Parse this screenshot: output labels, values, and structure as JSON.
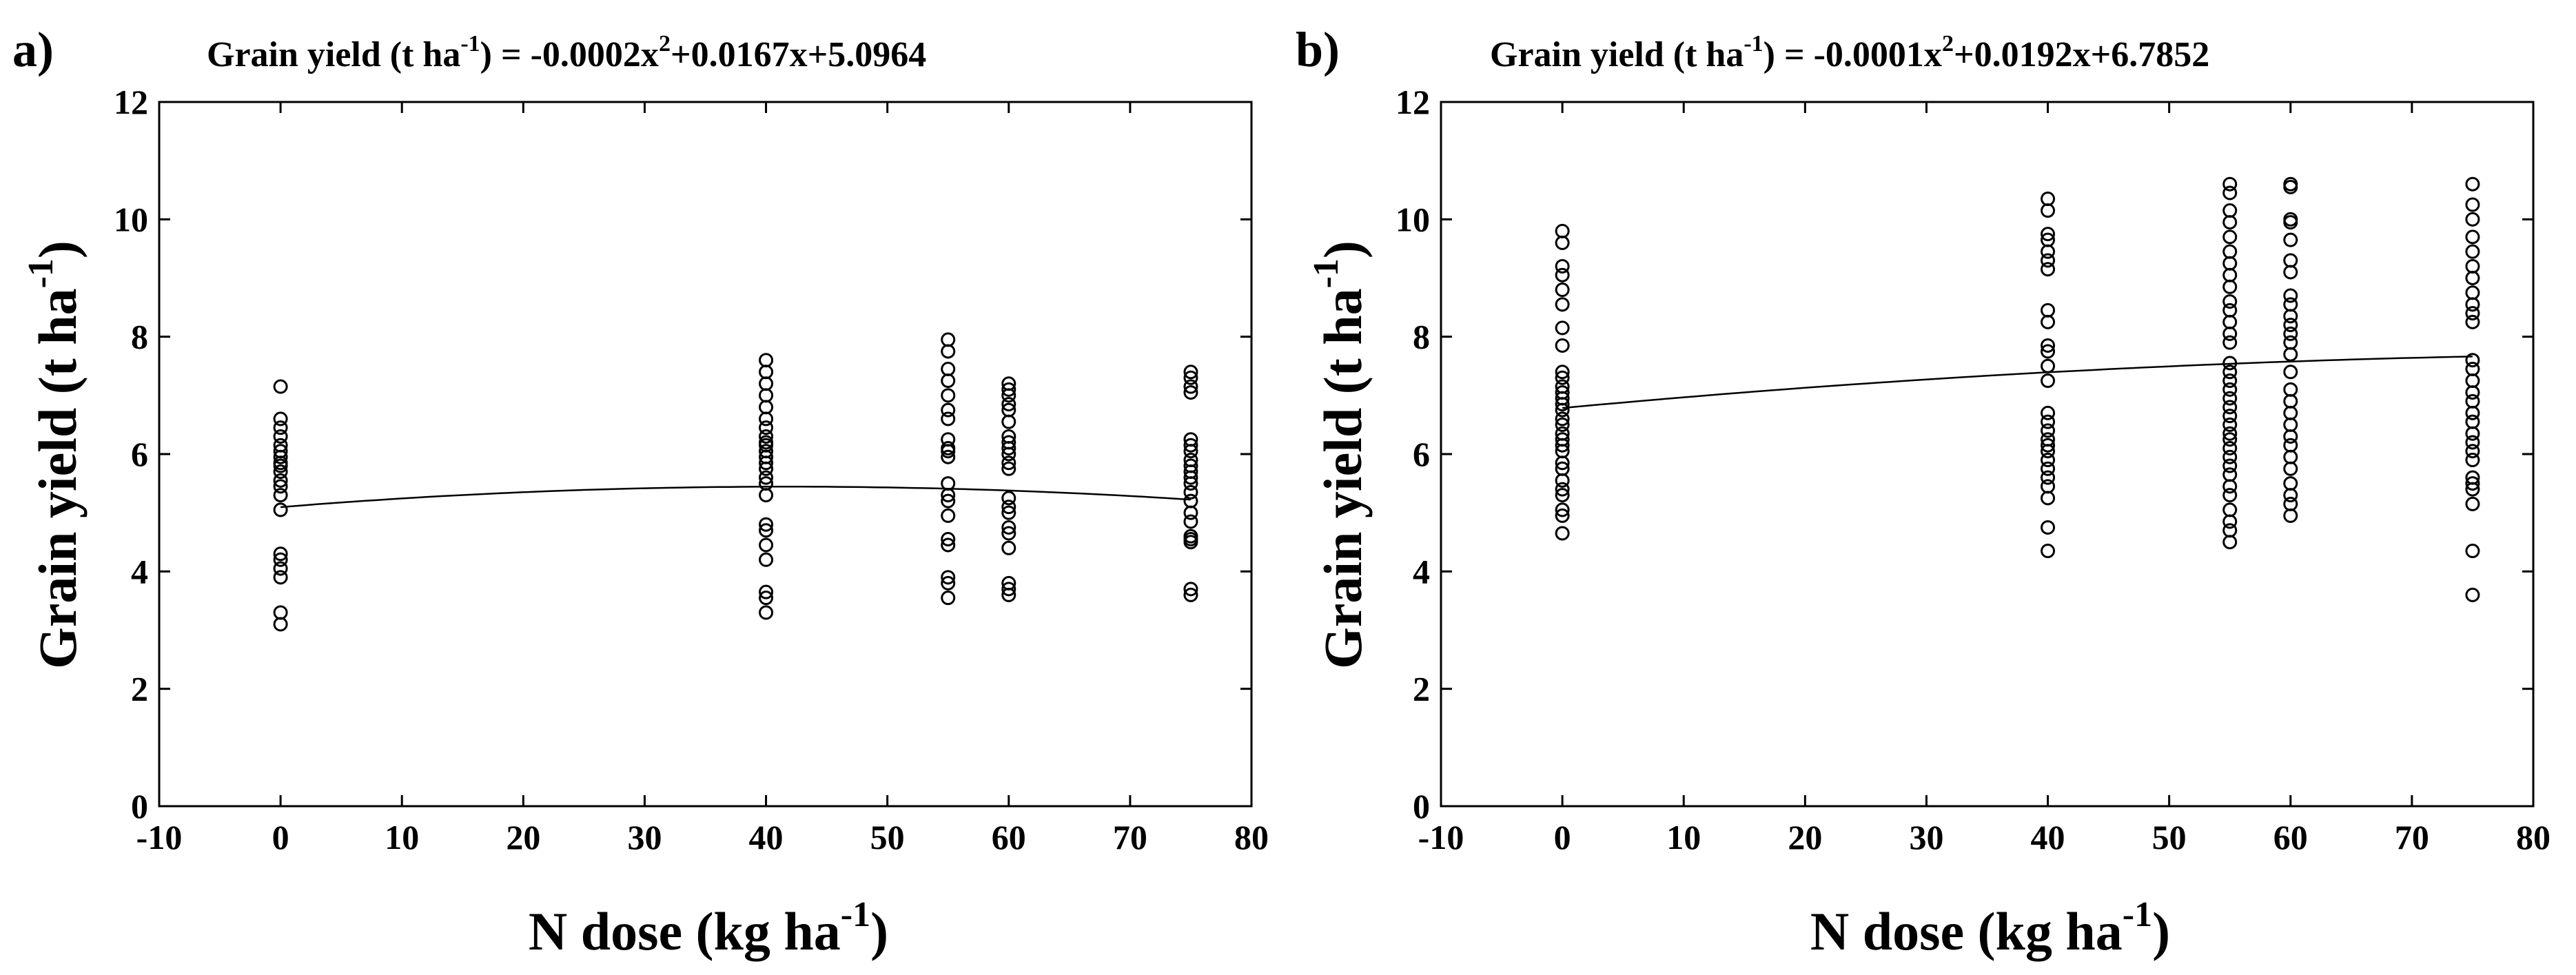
{
  "chart_data": [
    {
      "type": "scatter",
      "panel_label": "a)",
      "title": {
        "prefix": "Grain yield (t ha",
        "prefix_sup": "-1",
        "middle": ") = -0.0002x",
        "middle_sup": "2",
        "suffix": "+0.0167x+5.0964"
      },
      "fit": {
        "a": -0.0002,
        "b": 0.0167,
        "c": 5.0964
      },
      "xlabel": {
        "main": "N dose (kg ha",
        "sup": "-1",
        "close": ")"
      },
      "ylabel": {
        "main": "Grain yield (t ha",
        "sup": "-1",
        "close": ")"
      },
      "xlim": [
        -10,
        80
      ],
      "ylim": [
        0,
        12
      ],
      "xticks": [
        -10,
        0,
        10,
        20,
        30,
        40,
        50,
        60,
        70,
        80
      ],
      "yticks": [
        0,
        2,
        4,
        6,
        8,
        10,
        12
      ],
      "groups": [
        {
          "x": 0,
          "y": [
            3.1,
            3.3,
            3.9,
            4.05,
            4.2,
            4.3,
            5.05,
            5.3,
            5.45,
            5.55,
            5.7,
            5.8,
            5.85,
            5.95,
            6.05,
            6.15,
            6.3,
            6.45,
            6.6,
            7.15
          ]
        },
        {
          "x": 40,
          "y": [
            3.3,
            3.55,
            3.65,
            4.2,
            4.45,
            4.7,
            4.8,
            5.3,
            5.5,
            5.6,
            5.75,
            5.85,
            5.95,
            6.05,
            6.15,
            6.2,
            6.3,
            6.45,
            6.6,
            6.8,
            7.0,
            7.2,
            7.4,
            7.6
          ]
        },
        {
          "x": 55,
          "y": [
            3.55,
            3.8,
            3.9,
            4.45,
            4.55,
            4.95,
            5.2,
            5.3,
            5.5,
            5.95,
            6.05,
            6.1,
            6.25,
            6.6,
            6.75,
            7.0,
            7.25,
            7.45,
            7.75,
            7.95
          ]
        },
        {
          "x": 60,
          "y": [
            3.6,
            3.7,
            3.8,
            4.4,
            4.65,
            4.75,
            5.0,
            5.1,
            5.25,
            5.75,
            5.85,
            6.0,
            6.1,
            6.2,
            6.3,
            6.55,
            6.75,
            6.85,
            7.0,
            7.1,
            7.2
          ]
        },
        {
          "x": 75,
          "y": [
            3.6,
            3.7,
            4.5,
            4.55,
            4.6,
            4.85,
            5.0,
            5.2,
            5.35,
            5.5,
            5.6,
            5.7,
            5.8,
            5.9,
            6.05,
            6.15,
            6.25,
            7.05,
            7.15,
            7.3,
            7.4
          ]
        }
      ]
    },
    {
      "type": "scatter",
      "panel_label": "b)",
      "title": {
        "prefix": "Grain yield (t ha",
        "prefix_sup": "-1",
        "middle": ") = -0.0001x",
        "middle_sup": "2",
        "suffix": "+0.0192x+6.7852"
      },
      "fit": {
        "a": -0.0001,
        "b": 0.0192,
        "c": 6.7852
      },
      "xlabel": {
        "main": "N dose (kg ha",
        "sup": "-1",
        "close": ")"
      },
      "ylabel": {
        "main": "Grain yield (t ha",
        "sup": "-1",
        "close": ")"
      },
      "xlim": [
        -10,
        80
      ],
      "ylim": [
        0,
        12
      ],
      "xticks": [
        -10,
        0,
        10,
        20,
        30,
        40,
        50,
        60,
        70,
        80
      ],
      "yticks": [
        0,
        2,
        4,
        6,
        8,
        10,
        12
      ],
      "groups": [
        {
          "x": 0,
          "y": [
            4.65,
            4.95,
            5.05,
            5.3,
            5.4,
            5.55,
            5.75,
            5.85,
            6.05,
            6.15,
            6.25,
            6.35,
            6.5,
            6.6,
            6.75,
            6.85,
            6.95,
            7.05,
            7.15,
            7.3,
            7.4,
            7.85,
            8.15,
            8.55,
            8.8,
            9.05,
            9.2,
            9.6,
            9.8
          ]
        },
        {
          "x": 40,
          "y": [
            4.35,
            4.75,
            5.25,
            5.45,
            5.6,
            5.75,
            5.9,
            6.05,
            6.15,
            6.25,
            6.4,
            6.55,
            6.7,
            7.25,
            7.5,
            7.75,
            7.85,
            8.25,
            8.45,
            9.15,
            9.3,
            9.45,
            9.65,
            9.75,
            10.15,
            10.35
          ]
        },
        {
          "x": 55,
          "y": [
            4.5,
            4.7,
            4.85,
            5.05,
            5.3,
            5.45,
            5.65,
            5.8,
            5.95,
            6.1,
            6.25,
            6.35,
            6.5,
            6.65,
            6.8,
            6.95,
            7.1,
            7.25,
            7.4,
            7.55,
            7.9,
            8.05,
            8.25,
            8.45,
            8.6,
            8.85,
            9.05,
            9.25,
            9.45,
            9.7,
            9.95,
            10.15,
            10.45,
            10.6
          ]
        },
        {
          "x": 60,
          "y": [
            4.95,
            5.15,
            5.3,
            5.5,
            5.75,
            5.95,
            6.15,
            6.3,
            6.5,
            6.7,
            6.9,
            7.1,
            7.4,
            7.7,
            7.9,
            8.05,
            8.2,
            8.35,
            8.55,
            8.7,
            9.1,
            9.3,
            9.65,
            9.95,
            10.0,
            10.55,
            10.6
          ]
        },
        {
          "x": 75,
          "y": [
            3.6,
            4.35,
            5.15,
            5.4,
            5.5,
            5.6,
            5.9,
            6.05,
            6.2,
            6.35,
            6.55,
            6.7,
            6.9,
            7.05,
            7.25,
            7.45,
            7.6,
            8.25,
            8.4,
            8.55,
            8.75,
            9.0,
            9.2,
            9.45,
            9.7,
            10.0,
            10.25,
            10.6
          ]
        }
      ]
    }
  ]
}
